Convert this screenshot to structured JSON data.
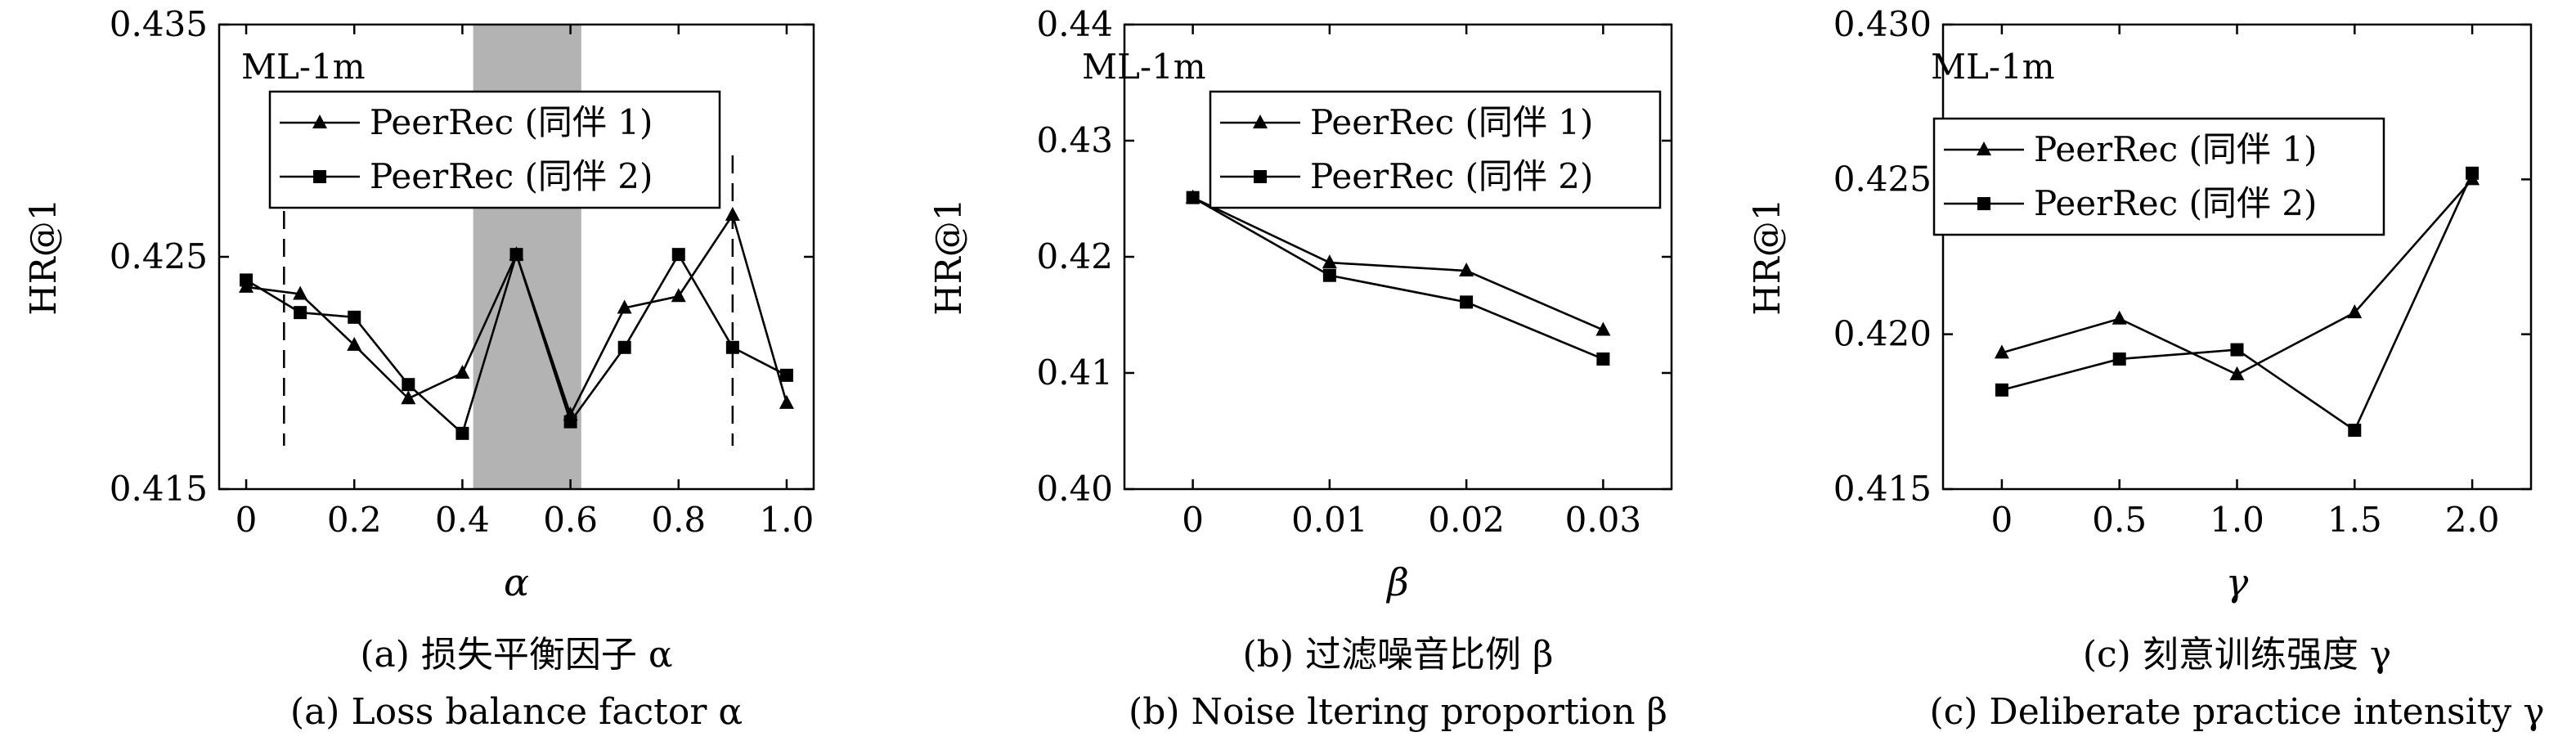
{
  "chart_data": [
    {
      "type": "line",
      "panel_tag": "ML-1m",
      "xlabel": "α",
      "ylabel": "HR@1",
      "xlim": [
        -0.05,
        1.05
      ],
      "ylim": [
        0.415,
        0.435
      ],
      "xticks": [
        "0",
        "0.2",
        "0.4",
        "0.6",
        "0.8",
        "1.0"
      ],
      "xtick_values": [
        0,
        0.2,
        0.4,
        0.6,
        0.8,
        1.0
      ],
      "yticks": [
        "0.415",
        "0.425",
        "0.435"
      ],
      "ytick_values": [
        0.415,
        0.425,
        0.435
      ],
      "x": [
        0,
        0.1,
        0.2,
        0.3,
        0.4,
        0.5,
        0.6,
        0.7,
        0.8,
        0.9,
        1.0
      ],
      "series": [
        {
          "name": "PeerRec (同伴 1)",
          "marker": "triangle",
          "values": [
            0.4237,
            0.4234,
            0.4212,
            0.4189,
            0.42,
            0.4251,
            0.4182,
            0.4228,
            0.4233,
            0.4268,
            0.4187
          ]
        },
        {
          "name": "PeerRec (同伴 2)",
          "marker": "square",
          "values": [
            0.424,
            0.4226,
            0.4224,
            0.4195,
            0.4174,
            0.4251,
            0.4179,
            0.4211,
            0.4251,
            0.4211,
            0.4199
          ]
        }
      ],
      "shaded_band": [
        0.42,
        0.62
      ],
      "dashed_lines": [
        0.07,
        0.9
      ],
      "legend_position": "top-right",
      "caption_cn": "(a) 损失平衡因子 α",
      "caption_en": "(a) Loss balance factor α"
    },
    {
      "type": "line",
      "panel_tag": "ML-1m",
      "xlabel": "β",
      "ylabel": "HR@1",
      "xlim": [
        -0.005,
        0.035
      ],
      "ylim": [
        0.4,
        0.44
      ],
      "xticks": [
        "0",
        "0.01",
        "0.02",
        "0.03"
      ],
      "xtick_values": [
        0,
        0.01,
        0.02,
        0.03
      ],
      "yticks": [
        "0.40",
        "0.41",
        "0.42",
        "0.43",
        "0.44"
      ],
      "ytick_values": [
        0.4,
        0.41,
        0.42,
        0.43,
        0.44
      ],
      "x": [
        0,
        0.01,
        0.02,
        0.03
      ],
      "series": [
        {
          "name": "PeerRec (同伴 1)",
          "marker": "triangle",
          "values": [
            0.4251,
            0.4195,
            0.4188,
            0.4137
          ]
        },
        {
          "name": "PeerRec (同伴 2)",
          "marker": "square",
          "values": [
            0.4251,
            0.4184,
            0.4161,
            0.4112
          ]
        }
      ],
      "legend_position": "top-right",
      "caption_cn": "(b) 过滤噪音比例 β",
      "caption_en": "(b) Noise ltering proportion β"
    },
    {
      "type": "line",
      "panel_tag": "ML-1m",
      "xlabel": "γ",
      "ylabel": "HR@1",
      "xlim": [
        -0.25,
        2.25
      ],
      "ylim": [
        0.415,
        0.43
      ],
      "xticks": [
        "0",
        "0.5",
        "1.0",
        "1.5",
        "2.0"
      ],
      "xtick_values": [
        0,
        0.5,
        1.0,
        1.5,
        2.0
      ],
      "yticks": [
        "0.415",
        "0.420",
        "0.425",
        "0.430"
      ],
      "ytick_values": [
        0.415,
        0.42,
        0.425,
        0.43
      ],
      "x": [
        0,
        0.5,
        1.0,
        1.5,
        2.0
      ],
      "series": [
        {
          "name": "PeerRec (同伴 1)",
          "marker": "triangle",
          "values": [
            0.4194,
            0.4205,
            0.4187,
            0.4207,
            0.425
          ]
        },
        {
          "name": "PeerRec (同伴 2)",
          "marker": "square",
          "values": [
            0.4182,
            0.4192,
            0.4195,
            0.4169,
            0.4252
          ]
        }
      ],
      "legend_position": "top-left",
      "caption_cn": "(c) 刻意训练强度 γ",
      "caption_en": "(c) Deliberate practice intensity γ"
    }
  ]
}
